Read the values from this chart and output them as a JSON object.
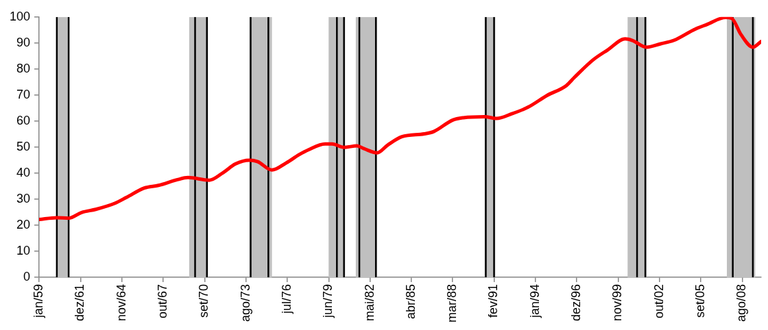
{
  "chart_data": {
    "type": "line",
    "x": [
      "1959-01",
      "1960-04",
      "1961-02",
      "1962-01",
      "1963-01",
      "1964-05",
      "1965-03",
      "1966-06",
      "1967-06",
      "1968-10",
      "1969-07",
      "1971-01",
      "1972-01",
      "1972-11",
      "1973-11",
      "1974-06",
      "1975-06",
      "1976-06",
      "1977-05",
      "1978-01",
      "1979-03",
      "1979-09",
      "1980-07",
      "1981-06",
      "1981-12",
      "1982-11",
      "1983-08",
      "1984-08",
      "1986-03",
      "1986-11",
      "1988-03",
      "1988-12",
      "1990-06",
      "1991-04",
      "1992-05",
      "1993-07",
      "1994-11",
      "1996-03",
      "1996-10",
      "1998-02",
      "1999-02",
      "2000-05",
      "2000-11",
      "2001-11",
      "2002-11",
      "2003-10",
      "2005-04",
      "2006-02",
      "2007-06",
      "2007-11",
      "2008-07",
      "2009-05",
      "2009-12"
    ],
    "series": [
      {
        "color": "#ff0000",
        "values": [
          22.2,
          22.9,
          22.7,
          24.9,
          26.1,
          28.4,
          30.7,
          34.3,
          35.3,
          37.5,
          38.3,
          37.3,
          40.3,
          43.5,
          45.0,
          44.4,
          41.2,
          43.9,
          47.1,
          49.0,
          51.2,
          51.2,
          49.9,
          50.5,
          49.4,
          47.8,
          50.8,
          54.0,
          55.1,
          56.0,
          60.4,
          61.3,
          61.7,
          61.0,
          62.8,
          65.4,
          69.9,
          73.6,
          76.8,
          83.6,
          87.3,
          91.6,
          91.0,
          88.4,
          89.7,
          91.0,
          95.3,
          97.1,
          99.8,
          99.5,
          93.2,
          88.4,
          90.6
        ]
      }
    ],
    "xlim": [
      "1959-01",
      "2009-12"
    ],
    "xticks": [
      {
        "value": "1959-01",
        "label": "jan/59"
      },
      {
        "value": "1961-12",
        "label": "dez/61"
      },
      {
        "value": "1964-11",
        "label": "nov/64"
      },
      {
        "value": "1967-10",
        "label": "out/67"
      },
      {
        "value": "1970-09",
        "label": "set/70"
      },
      {
        "value": "1973-08",
        "label": "ago/73"
      },
      {
        "value": "1976-07",
        "label": "jul/76"
      },
      {
        "value": "1979-06",
        "label": "jun/79"
      },
      {
        "value": "1982-05",
        "label": "mai/82"
      },
      {
        "value": "1985-04",
        "label": "abr/85"
      },
      {
        "value": "1988-03",
        "label": "mar/88"
      },
      {
        "value": "1991-02",
        "label": "fev/91"
      },
      {
        "value": "1994-01",
        "label": "jan/94"
      },
      {
        "value": "1996-12",
        "label": "dez/96"
      },
      {
        "value": "1999-11",
        "label": "nov/99"
      },
      {
        "value": "2002-10",
        "label": "out/02"
      },
      {
        "value": "2005-09",
        "label": "set/05"
      },
      {
        "value": "2008-08",
        "label": "ago/08"
      }
    ],
    "ylim": [
      0,
      100
    ],
    "yticks": [
      0,
      10,
      20,
      30,
      40,
      50,
      60,
      70,
      80,
      90,
      100
    ],
    "bands": [
      {
        "axis": "x",
        "from": "1960-04",
        "to": "1961-02",
        "color": "#bfbfbf"
      },
      {
        "axis": "x",
        "from": "1969-08",
        "to": "1970-12",
        "color": "#bfbfbf"
      },
      {
        "axis": "x",
        "from": "1973-11",
        "to": "1975-06",
        "color": "#bfbfbf"
      },
      {
        "axis": "x",
        "from": "1979-06",
        "to": "1980-08",
        "color": "#bfbfbf"
      },
      {
        "axis": "x",
        "from": "1981-05",
        "to": "1982-11",
        "color": "#bfbfbf"
      },
      {
        "axis": "x",
        "from": "1990-06",
        "to": "1991-03",
        "color": "#bfbfbf"
      },
      {
        "axis": "x",
        "from": "2000-07",
        "to": "2001-11",
        "color": "#bfbfbf"
      },
      {
        "axis": "x",
        "from": "2007-07",
        "to": "2009-07",
        "color": "#bfbfbf"
      }
    ],
    "ref_lines": [
      {
        "axis": "x",
        "value": "1960-04",
        "color": "#000000"
      },
      {
        "axis": "x",
        "value": "1961-02",
        "color": "#000000"
      },
      {
        "axis": "x",
        "value": "1970-01",
        "color": "#000000"
      },
      {
        "axis": "x",
        "value": "1970-11",
        "color": "#000000"
      },
      {
        "axis": "x",
        "value": "1973-12",
        "color": "#000000"
      },
      {
        "axis": "x",
        "value": "1975-03",
        "color": "#000000"
      },
      {
        "axis": "x",
        "value": "1980-01",
        "color": "#000000"
      },
      {
        "axis": "x",
        "value": "1980-07",
        "color": "#000000"
      },
      {
        "axis": "x",
        "value": "1981-08",
        "color": "#000000"
      },
      {
        "axis": "x",
        "value": "1982-10",
        "color": "#000000"
      },
      {
        "axis": "x",
        "value": "1990-07",
        "color": "#000000"
      },
      {
        "axis": "x",
        "value": "1991-02",
        "color": "#000000"
      },
      {
        "axis": "x",
        "value": "2001-03",
        "color": "#000000"
      },
      {
        "axis": "x",
        "value": "2001-10",
        "color": "#000000"
      },
      {
        "axis": "x",
        "value": "2007-12",
        "color": "#000000"
      },
      {
        "axis": "x",
        "value": "2009-05",
        "color": "#000000"
      }
    ]
  }
}
